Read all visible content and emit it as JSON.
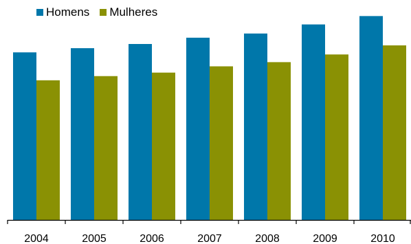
{
  "chart_data": {
    "type": "bar",
    "categories": [
      "2004",
      "2005",
      "2006",
      "2007",
      "2008",
      "2009",
      "2010"
    ],
    "series": [
      {
        "name": "Homens",
        "color": "#0077aa",
        "values": [
          240,
          246,
          252,
          261,
          267,
          280,
          292
        ]
      },
      {
        "name": "Mulheres",
        "color": "#8a9104",
        "values": [
          200,
          206,
          211,
          220,
          226,
          237,
          250
        ]
      }
    ],
    "ylim": [
      0,
      315
    ],
    "title": "",
    "xlabel": "",
    "ylabel": "",
    "grid": false,
    "legend": "top-left"
  }
}
